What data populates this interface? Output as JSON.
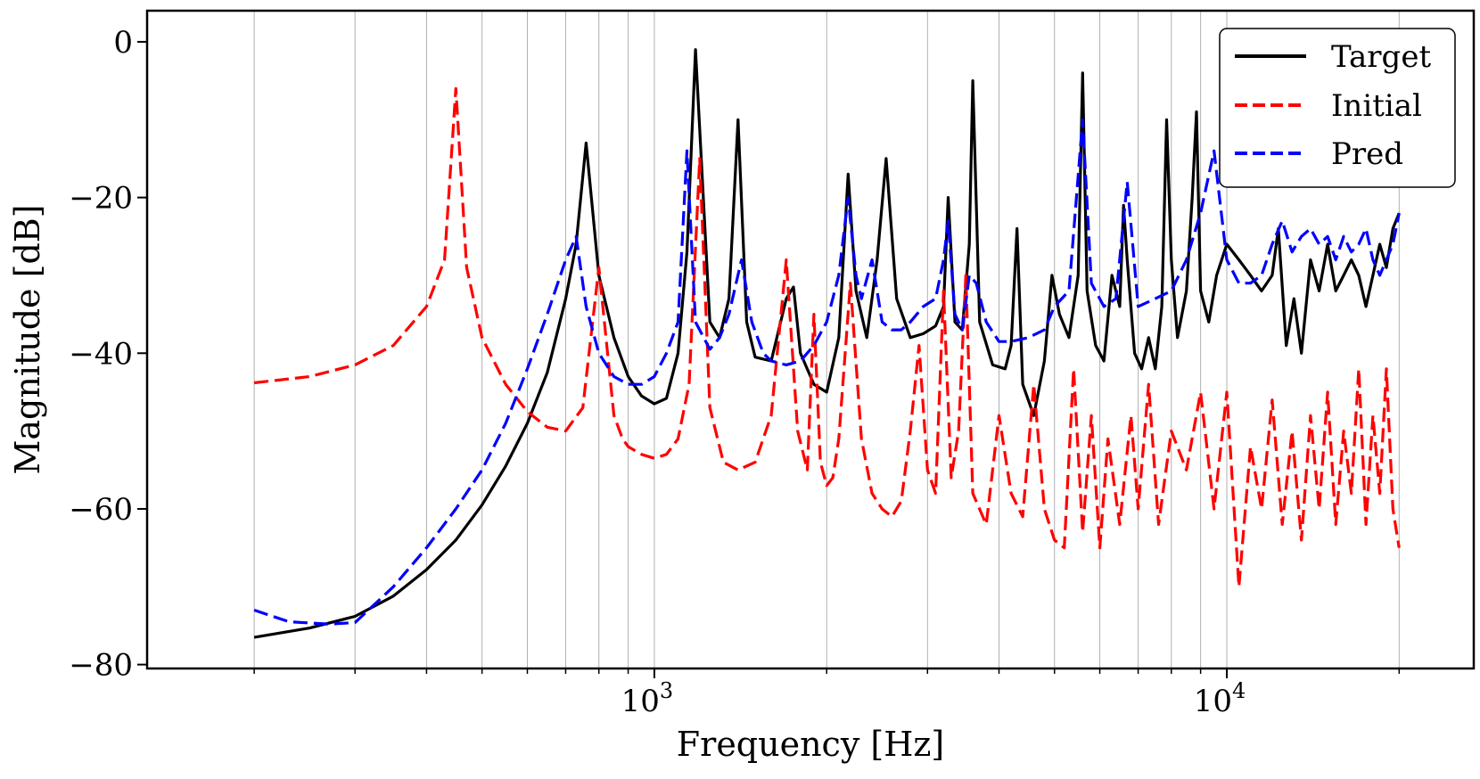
{
  "chart_data": {
    "type": "line",
    "title": "",
    "xlabel": "Frequency [Hz]",
    "ylabel": "Magnitude [dB]",
    "xscale": "log",
    "xlim": [
      130,
      27000
    ],
    "ylim": [
      -80.5,
      4
    ],
    "x_major_ticks": [
      {
        "value": 1000,
        "base": "10",
        "exp": "3"
      },
      {
        "value": 10000,
        "base": "10",
        "exp": "4"
      }
    ],
    "x_minor_ticks": [
      200,
      300,
      400,
      500,
      600,
      700,
      800,
      900,
      2000,
      3000,
      4000,
      5000,
      6000,
      7000,
      8000,
      9000,
      20000
    ],
    "y_ticks": [
      {
        "value": 0,
        "label": "0"
      },
      {
        "value": -20,
        "label": "−20"
      },
      {
        "value": -40,
        "label": "−40"
      },
      {
        "value": -60,
        "label": "−60"
      },
      {
        "value": -80,
        "label": "−80"
      }
    ],
    "grid": "x-vertical",
    "legend_position": "top-right",
    "series": [
      {
        "name": "Target",
        "color": "#000000",
        "dash": "solid",
        "x": [
          200,
          250,
          300,
          350,
          400,
          450,
          500,
          550,
          600,
          650,
          700,
          730,
          760,
          800,
          850,
          900,
          950,
          1000,
          1050,
          1100,
          1140,
          1180,
          1250,
          1300,
          1350,
          1400,
          1450,
          1500,
          1600,
          1700,
          1750,
          1800,
          1900,
          2000,
          2100,
          2180,
          2250,
          2350,
          2450,
          2540,
          2650,
          2800,
          2950,
          3100,
          3200,
          3260,
          3350,
          3450,
          3550,
          3600,
          3700,
          3900,
          4100,
          4200,
          4300,
          4400,
          4600,
          4800,
          4950,
          5100,
          5300,
          5500,
          5600,
          5700,
          5900,
          6100,
          6300,
          6500,
          6600,
          6700,
          6900,
          7100,
          7300,
          7500,
          7700,
          7850,
          8000,
          8200,
          8500,
          8700,
          8850,
          9000,
          9300,
          9600,
          10000,
          10500,
          11000,
          11500,
          12000,
          12300,
          12700,
          13100,
          13500,
          14000,
          14500,
          15000,
          15500,
          16000,
          16500,
          17000,
          17500,
          18000,
          18500,
          19000,
          19500,
          20000
        ],
        "y": [
          -76.5,
          -75.3,
          -73.8,
          -71.2,
          -67.8,
          -64,
          -59.5,
          -54.5,
          -49,
          -42.5,
          -33,
          -26,
          -13,
          -30,
          -38,
          -43,
          -45.5,
          -46.5,
          -45.8,
          -40,
          -27,
          -1,
          -36,
          -38,
          -33,
          -10,
          -36,
          -40.5,
          -41,
          -33,
          -31.5,
          -40,
          -44,
          -45,
          -38,
          -17,
          -32,
          -38,
          -28,
          -15,
          -33,
          -38,
          -37.5,
          -36.5,
          -34,
          -20,
          -36,
          -37,
          -26,
          -5,
          -36,
          -41.5,
          -42,
          -39,
          -24,
          -44,
          -48,
          -41,
          -30,
          -35,
          -38,
          -30,
          -4,
          -32,
          -39,
          -41,
          -30,
          -34,
          -21,
          -28,
          -40,
          -42,
          -38,
          -42,
          -34,
          -10,
          -28,
          -38,
          -32,
          -20,
          -9,
          -32,
          -36,
          -30,
          -26,
          -28,
          -30,
          -32,
          -30,
          -24,
          -39,
          -33,
          -40,
          -28,
          -32,
          -26,
          -32,
          -30,
          -28,
          -30,
          -34,
          -30,
          -26,
          -29,
          -24,
          -22
        ]
      },
      {
        "name": "Initial",
        "color": "#ff0000",
        "dash": "dashed",
        "x": [
          200,
          250,
          300,
          350,
          400,
          430,
          450,
          470,
          500,
          550,
          600,
          650,
          700,
          750,
          800,
          850,
          880,
          900,
          950,
          1000,
          1050,
          1100,
          1150,
          1200,
          1250,
          1290,
          1320,
          1400,
          1500,
          1600,
          1700,
          1780,
          1850,
          1900,
          1950,
          2000,
          2050,
          2100,
          2200,
          2300,
          2400,
          2500,
          2600,
          2700,
          2800,
          2900,
          3000,
          3100,
          3200,
          3300,
          3400,
          3500,
          3600,
          3800,
          4000,
          4200,
          4400,
          4600,
          4800,
          5000,
          5200,
          5400,
          5600,
          5800,
          6000,
          6200,
          6500,
          6800,
          7000,
          7300,
          7600,
          8000,
          8500,
          9000,
          9500,
          10000,
          10500,
          11000,
          11500,
          12000,
          12500,
          13000,
          13500,
          14000,
          14500,
          15000,
          15500,
          16000,
          16500,
          17000,
          17500,
          18000,
          18500,
          19000,
          19500,
          20000
        ],
        "y": [
          -43.8,
          -43,
          -41.5,
          -39,
          -34,
          -28,
          -6,
          -29,
          -38,
          -44,
          -47.5,
          -49.5,
          -50,
          -47,
          -29,
          -48,
          -51,
          -52,
          -53,
          -53.5,
          -53,
          -51,
          -44,
          -15,
          -47,
          -51,
          -54,
          -55,
          -54,
          -48,
          -28,
          -50,
          -55,
          -35,
          -54,
          -57,
          -56,
          -51,
          -31,
          -51,
          -58,
          -60,
          -61,
          -59,
          -50,
          -39,
          -55,
          -58,
          -32,
          -56,
          -50,
          -30,
          -58,
          -62,
          -48,
          -58,
          -61,
          -44,
          -60,
          -64,
          -65,
          -42,
          -63,
          -48,
          -65,
          -51,
          -62,
          -48,
          -60,
          -44,
          -62,
          -50,
          -55,
          -45,
          -60,
          -45,
          -70,
          -52,
          -60,
          -46,
          -62,
          -50,
          -64,
          -48,
          -60,
          -45,
          -62,
          -50,
          -58,
          -42,
          -62,
          -48,
          -58,
          -42,
          -60,
          -65
        ]
      },
      {
        "name": "Pred",
        "color": "#0000ff",
        "dash": "dashed",
        "x": [
          200,
          230,
          270,
          300,
          350,
          400,
          450,
          500,
          550,
          600,
          650,
          700,
          730,
          760,
          800,
          850,
          900,
          950,
          1000,
          1050,
          1100,
          1140,
          1180,
          1250,
          1300,
          1350,
          1420,
          1480,
          1550,
          1600,
          1700,
          1800,
          1900,
          2000,
          2100,
          2180,
          2250,
          2300,
          2400,
          2500,
          2600,
          2700,
          2800,
          2950,
          3100,
          3200,
          3260,
          3350,
          3450,
          3550,
          3650,
          3800,
          4000,
          4200,
          4500,
          4800,
          5000,
          5300,
          5600,
          5800,
          6100,
          6400,
          6700,
          7000,
          7500,
          8000,
          8500,
          9000,
          9500,
          10000,
          10500,
          11000,
          11500,
          12000,
          12500,
          13000,
          13500,
          14000,
          14500,
          15000,
          15500,
          16000,
          16500,
          17000,
          17500,
          18000,
          18500,
          19000,
          19500,
          20000
        ],
        "y": [
          -73,
          -74.5,
          -74.8,
          -74.6,
          -70,
          -65,
          -60,
          -55,
          -49,
          -42,
          -35,
          -28,
          -25,
          -34,
          -40,
          -43,
          -44,
          -44,
          -43,
          -40,
          -36,
          -14,
          -36,
          -39.5,
          -38,
          -35,
          -28,
          -36,
          -40,
          -41,
          -41.5,
          -41,
          -39,
          -36,
          -30,
          -20,
          -30,
          -33,
          -28,
          -36,
          -37,
          -37,
          -36,
          -34,
          -33,
          -28,
          -23,
          -35,
          -37,
          -30,
          -31,
          -36,
          -38.5,
          -38.5,
          -38,
          -37,
          -34,
          -32,
          -10,
          -31,
          -34,
          -33,
          -18,
          -34,
          -33,
          -32,
          -28,
          -22,
          -14,
          -28,
          -31,
          -31,
          -30,
          -26,
          -23,
          -27,
          -25,
          -24,
          -26,
          -25,
          -28,
          -25,
          -27,
          -26,
          -24,
          -28,
          -30,
          -28,
          -26,
          -22
        ]
      }
    ]
  }
}
